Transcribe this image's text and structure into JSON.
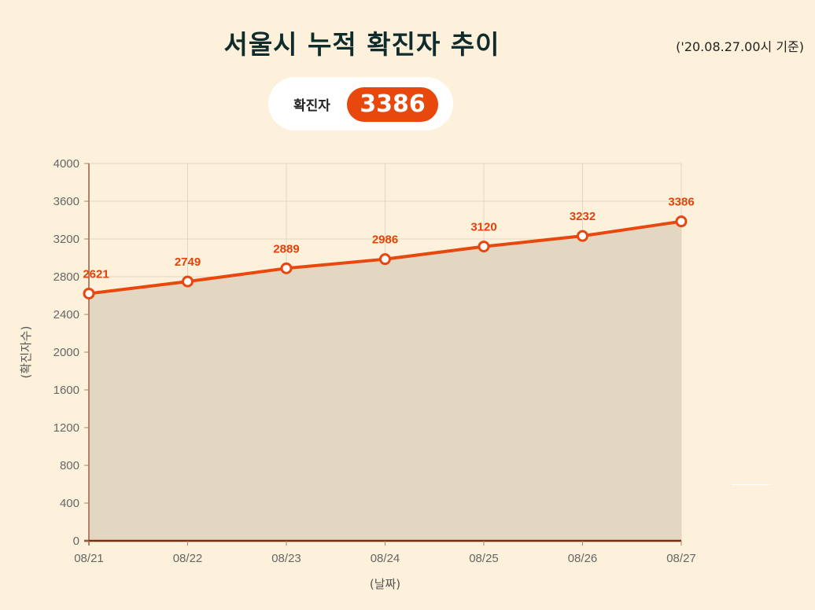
{
  "header": {
    "title": "서울시 누적 확진자 추이",
    "as_of": "('20.08.27.00시 기준)"
  },
  "summary": {
    "label": "확진자",
    "value": "3386"
  },
  "colors": {
    "background": "#fdf1dc",
    "line": "#e8470d",
    "area_fill": "#e4d7c1",
    "badge": "#e8470d",
    "label": "#e0440b"
  },
  "chart_data": {
    "type": "area",
    "categories": [
      "08/21",
      "08/22",
      "08/23",
      "08/24",
      "08/25",
      "08/26",
      "08/27"
    ],
    "values": [
      2621,
      2749,
      2889,
      2986,
      3120,
      3232,
      3386
    ],
    "xlabel": "(날짜)",
    "ylabel": "(확진자수)",
    "ylim": [
      0,
      4000
    ],
    "yticks": [
      0,
      400,
      800,
      1200,
      1600,
      2000,
      2400,
      2800,
      3200,
      3600,
      4000
    ],
    "grid": true,
    "data_labels": true
  }
}
